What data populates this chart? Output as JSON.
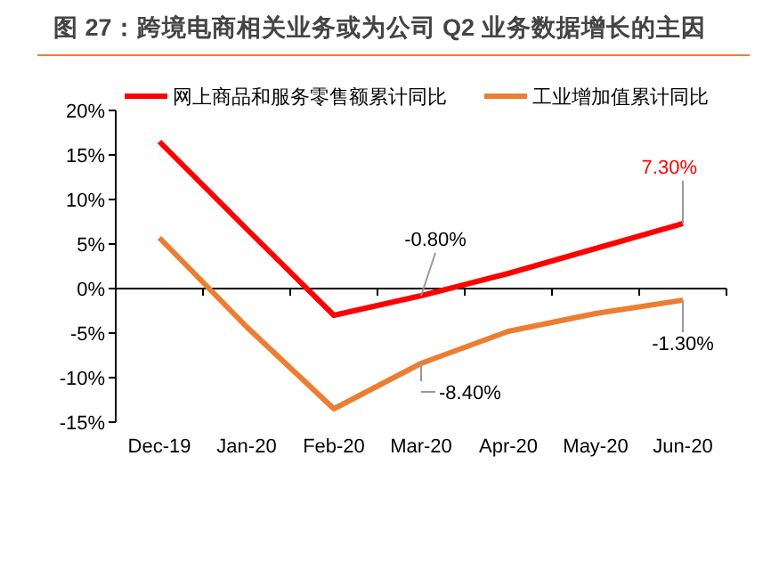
{
  "chart_data": {
    "type": "line",
    "title": "图 27：跨境电商相关业务或为公司 Q2 业务数据增长的主因",
    "categories": [
      "Dec-19",
      "Jan-20",
      "Feb-20",
      "Mar-20",
      "Apr-20",
      "May-20",
      "Jun-20"
    ],
    "series": [
      {
        "name": "网上商品和服务零售额累计同比",
        "color": "#ff0000",
        "values": [
          16.5,
          6.7,
          -3.0,
          -0.8,
          1.7,
          4.5,
          7.3
        ]
      },
      {
        "name": "工业增加值累计同比",
        "color": "#ed7d31",
        "values": [
          5.7,
          -4.3,
          -13.5,
          -8.4,
          -4.8,
          -2.8,
          -1.3
        ]
      }
    ],
    "ylim": [
      -15,
      20
    ],
    "yticks": [
      {
        "value": -15,
        "label": "-15%"
      },
      {
        "value": -10,
        "label": "-10%"
      },
      {
        "value": -5,
        "label": "-5%"
      },
      {
        "value": 0,
        "label": "0%"
      },
      {
        "value": 5,
        "label": "5%"
      },
      {
        "value": 10,
        "label": "10%"
      },
      {
        "value": 15,
        "label": "15%"
      },
      {
        "value": 20,
        "label": "20%"
      }
    ],
    "annotations": [
      {
        "text": "7.30%",
        "x": "Jun-20",
        "y": 7.3
      },
      {
        "text": "-0.80%",
        "x": "Mar-20",
        "y": -0.8
      },
      {
        "text": "-8.40%",
        "x": "Mar-20",
        "y": -8.4
      },
      {
        "text": "-1.30%",
        "x": "Jun-20",
        "y": -1.3
      }
    ],
    "legend": "top",
    "marker": "none",
    "line_style": "solid"
  }
}
